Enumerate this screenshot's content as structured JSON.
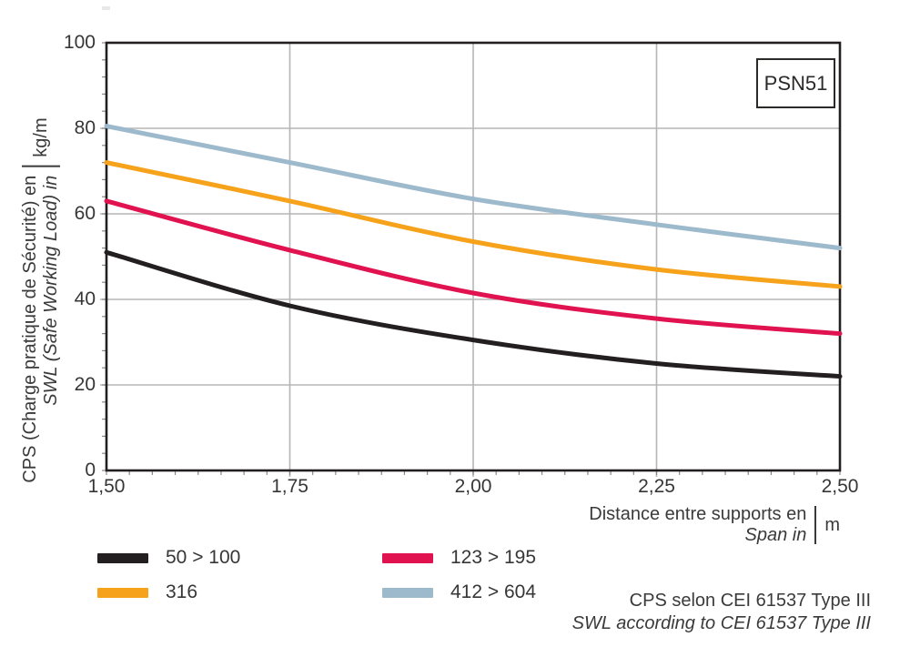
{
  "product_label": "PSN51",
  "y_axis": {
    "title_fr": "CPS (Charge pratique de Sécurité) en",
    "title_en": "SWL (Safe Working Load) in",
    "unit": "kg/m",
    "ticks": [
      "100",
      "80",
      "60",
      "40",
      "20",
      "0"
    ]
  },
  "x_axis": {
    "title_fr": "Distance entre supports en",
    "title_en": "Span in",
    "unit": "m",
    "ticks": [
      "1,50",
      "1,75",
      "2,00",
      "2,25",
      "2,50"
    ]
  },
  "legend": {
    "items": [
      {
        "label": "50 > 100",
        "color": "#231f20"
      },
      {
        "label": "123 > 195",
        "color": "#e01350"
      },
      {
        "label": "316",
        "color": "#f6a21b"
      },
      {
        "label": "412 > 604",
        "color": "#9db9cc"
      }
    ]
  },
  "footnote": {
    "fr": "CPS selon CEI 61537 Type III",
    "en": "SWL according to CEI 61537 Type III"
  },
  "colors": {
    "frame": "#231f20",
    "gridline": "#b5b5b5",
    "minor_tick": "#8a8a8a",
    "text": "#3a3a3a"
  },
  "chart_data": {
    "type": "line",
    "title": "PSN51 — CPS / SWL vs span",
    "xlabel": "Distance entre supports en / Span in (m)",
    "ylabel": "CPS (Charge pratique de Sécurité) / SWL (Safe Working Load) (kg/m)",
    "x": [
      1.5,
      1.75,
      2.0,
      2.25,
      2.5
    ],
    "series": [
      {
        "name": "50 > 100",
        "color": "#231f20",
        "values": [
          51,
          38.5,
          30.5,
          25,
          22
        ]
      },
      {
        "name": "123 > 195",
        "color": "#e01350",
        "values": [
          63,
          51.5,
          41.5,
          35.5,
          32
        ]
      },
      {
        "name": "316",
        "color": "#f6a21b",
        "values": [
          72,
          63,
          53.5,
          47,
          43
        ]
      },
      {
        "name": "412 > 604",
        "color": "#9db9cc",
        "values": [
          80.5,
          72,
          63.5,
          57.5,
          52
        ]
      }
    ],
    "xlim": [
      1.5,
      2.5
    ],
    "ylim": [
      0,
      100
    ],
    "grid": true,
    "grid_x": [
      1.75,
      2.0,
      2.25
    ],
    "grid_y": [
      20,
      40,
      60,
      80
    ],
    "legend_position": "bottom-left"
  }
}
